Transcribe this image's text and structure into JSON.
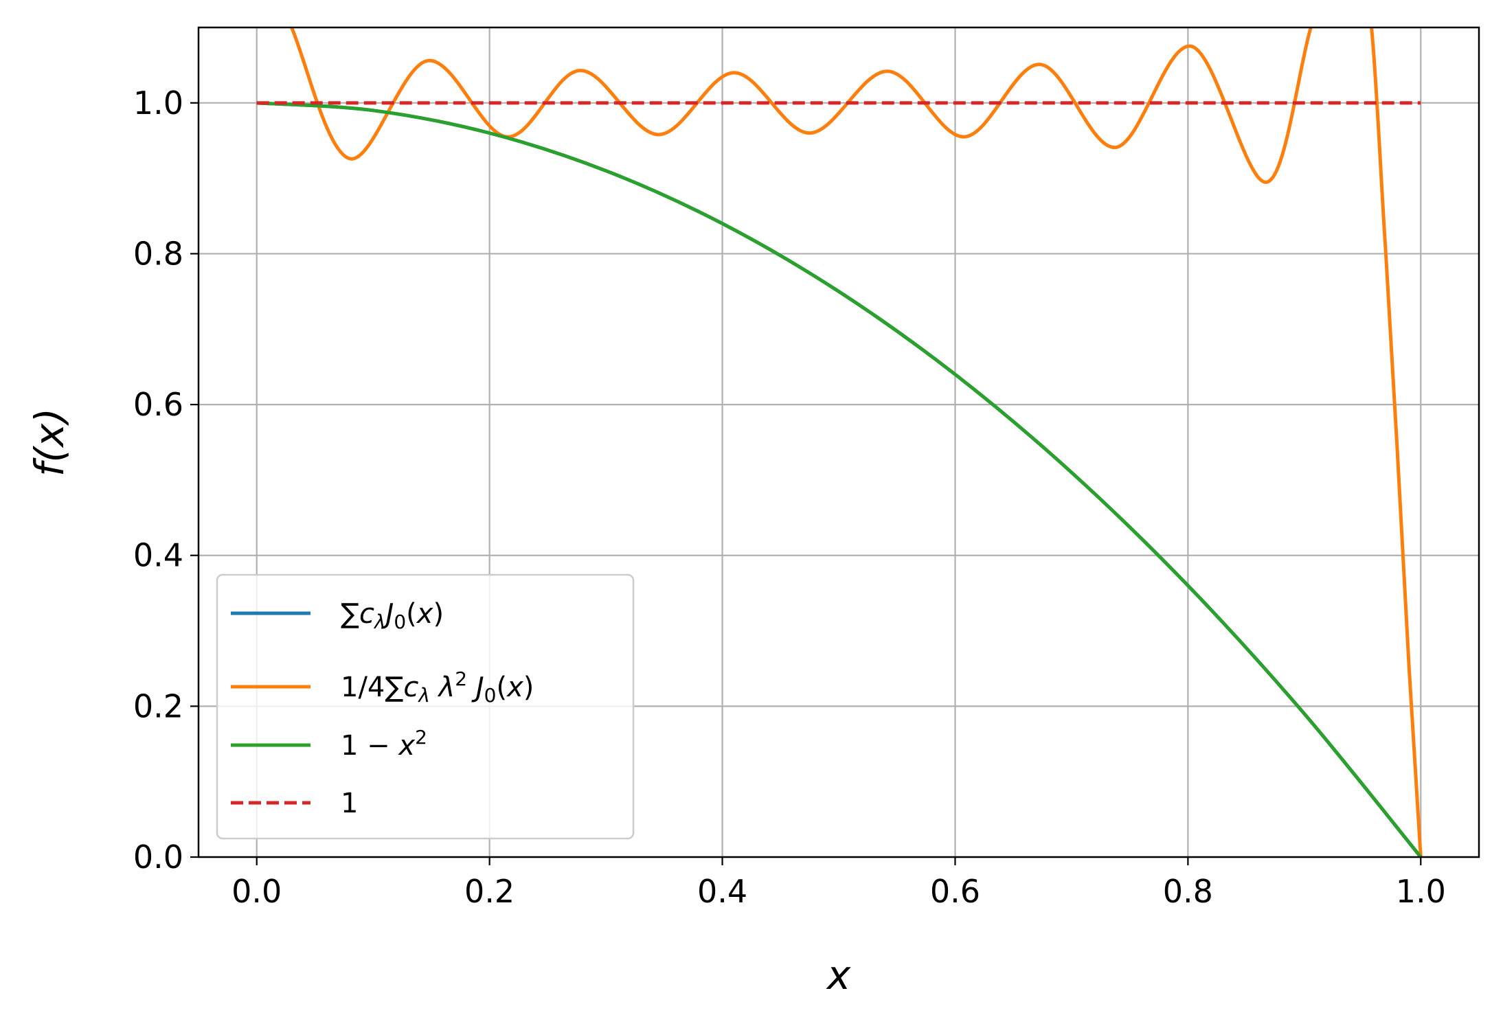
{
  "chart_data": {
    "type": "line",
    "xlabel": "x",
    "ylabel": "f(x)",
    "xlim": [
      -0.05,
      1.05
    ],
    "ylim": [
      0.0,
      1.1
    ],
    "xticks": [
      0.0,
      0.2,
      0.4,
      0.6,
      0.8,
      1.0
    ],
    "yticks": [
      0.0,
      0.2,
      0.4,
      0.6,
      0.8,
      1.0
    ],
    "xtick_labels": [
      "0.0",
      "0.2",
      "0.4",
      "0.6",
      "0.8",
      "1.0"
    ],
    "ytick_labels": [
      "0.0",
      "0.2",
      "0.4",
      "0.6",
      "0.8",
      "1.0"
    ],
    "grid": true,
    "legend_position": "lower-left",
    "series": [
      {
        "name": "∑c_λ J_0(x)",
        "color": "#1f77b4",
        "style": "solid",
        "x": [
          0.0,
          0.1,
          0.2,
          0.3,
          0.4,
          0.5,
          0.6,
          0.7,
          0.8,
          0.9,
          1.0
        ],
        "y": [
          1.0,
          0.99,
          0.96,
          0.91,
          0.84,
          0.75,
          0.64,
          0.51,
          0.36,
          0.19,
          0.0
        ]
      },
      {
        "name": "1/4∑c_λ λ² J_0(x)",
        "color": "#ff7f0e",
        "style": "solid",
        "x": [
          0.0,
          0.03,
          0.08,
          0.147,
          0.215,
          0.278,
          0.345,
          0.41,
          0.475,
          0.542,
          0.608,
          0.673,
          0.738,
          0.803,
          0.868,
          0.91,
          0.95,
          0.97,
          0.99,
          1.0
        ],
        "y": [
          1.22,
          1.1,
          0.926,
          1.056,
          0.955,
          1.043,
          0.958,
          1.04,
          0.96,
          1.042,
          0.955,
          1.051,
          0.941,
          1.075,
          0.895,
          1.12,
          1.18,
          0.8,
          0.25,
          0.0
        ]
      },
      {
        "name": "1 − x²",
        "color": "#2ca02c",
        "style": "solid",
        "x": [
          0.0,
          0.1,
          0.2,
          0.3,
          0.4,
          0.5,
          0.6,
          0.7,
          0.8,
          0.9,
          1.0
        ],
        "y": [
          1.0,
          0.99,
          0.96,
          0.91,
          0.84,
          0.75,
          0.64,
          0.51,
          0.36,
          0.19,
          0.0
        ]
      },
      {
        "name": "1",
        "color": "#d62728",
        "style": "dashed",
        "x": [
          0.0,
          1.0
        ],
        "y": [
          1.0,
          1.0
        ]
      }
    ]
  }
}
